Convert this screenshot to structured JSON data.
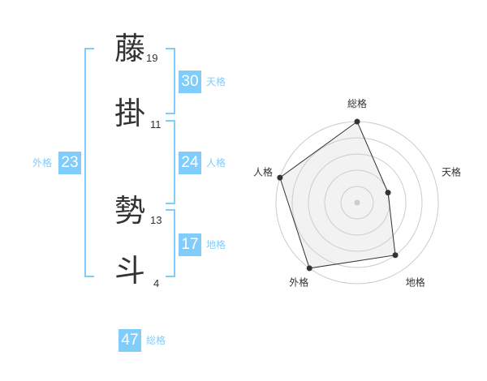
{
  "characters": [
    {
      "char": "藤",
      "strokes": "19"
    },
    {
      "char": "掛",
      "strokes": "11"
    },
    {
      "char": "勢",
      "strokes": "13"
    },
    {
      "char": "斗",
      "strokes": "4"
    }
  ],
  "kaku": {
    "tenkaku": {
      "value": "30",
      "label": "天格"
    },
    "jinkaku": {
      "value": "24",
      "label": "人格"
    },
    "chikaku": {
      "value": "17",
      "label": "地格"
    },
    "gaikaku": {
      "value": "23",
      "label": "外格"
    },
    "soukaku": {
      "value": "47",
      "label": "総格"
    }
  },
  "colors": {
    "accent": "#80cdfb",
    "radar_fill": "#f2f2f2",
    "radar_line": "#333333",
    "ring": "#cccccc"
  },
  "chart_data": {
    "type": "radar",
    "axes": [
      "総格",
      "天格",
      "地格",
      "外格",
      "人格"
    ],
    "values": [
      5,
      2,
      4,
      5,
      5
    ],
    "range": [
      0,
      5
    ],
    "rings": 5
  }
}
